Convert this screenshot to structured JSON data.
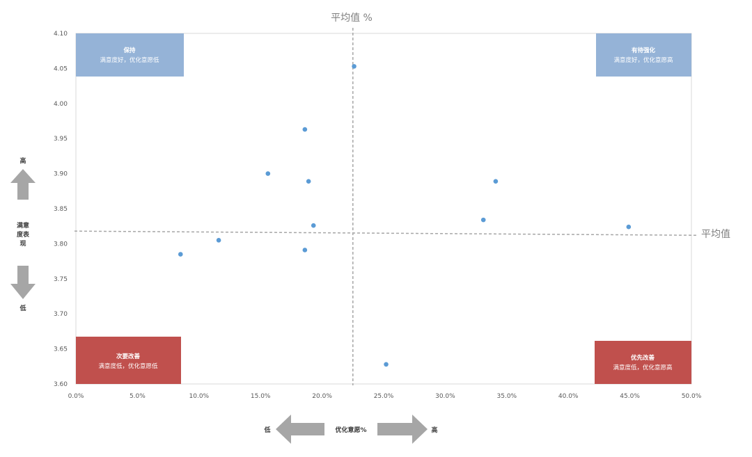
{
  "chart_data": {
    "type": "scatter",
    "title": "",
    "xlabel": "优化意愿%",
    "ylabel": "满意度表现",
    "xlim": [
      0,
      0.5
    ],
    "ylim": [
      3.6,
      4.1
    ],
    "x_ticks": [
      "0.0%",
      "5.0%",
      "10.0%",
      "15.0%",
      "20.0%",
      "25.0%",
      "30.0%",
      "35.0%",
      "40.0%",
      "45.0%",
      "50.0%"
    ],
    "y_ticks": [
      "3.60",
      "3.65",
      "3.70",
      "3.75",
      "3.80",
      "3.85",
      "3.90",
      "3.95",
      "4.00",
      "4.05",
      "4.10"
    ],
    "points": [
      {
        "x": 0.085,
        "y": 3.785
      },
      {
        "x": 0.116,
        "y": 3.805
      },
      {
        "x": 0.156,
        "y": 3.9
      },
      {
        "x": 0.186,
        "y": 3.963
      },
      {
        "x": 0.186,
        "y": 3.791
      },
      {
        "x": 0.189,
        "y": 3.889
      },
      {
        "x": 0.193,
        "y": 3.826
      },
      {
        "x": 0.226,
        "y": 4.053
      },
      {
        "x": 0.252,
        "y": 3.628
      },
      {
        "x": 0.331,
        "y": 3.834
      },
      {
        "x": 0.341,
        "y": 3.889
      },
      {
        "x": 0.449,
        "y": 3.824
      }
    ],
    "ref_x": 0.225,
    "ref_y": 3.818,
    "ref_x_label": "平均值 %",
    "ref_y_label": "平均值",
    "grid": false,
    "point_color": "#5b9bd5",
    "ref_line_color": "#a6a6a6"
  },
  "quadrants": {
    "top_left": {
      "title": "保持",
      "subtitle": "满意度好，优化意愿低",
      "color": "#95b3d7"
    },
    "top_right": {
      "title": "有待强化",
      "subtitle": "满意度好，优化意愿高",
      "color": "#95b3d7"
    },
    "bottom_left": {
      "title": "次要改善",
      "subtitle": "满意度低，优化意愿低",
      "color": "#c0504d"
    },
    "bottom_right": {
      "title": "优先改善",
      "subtitle": "满意度低，优化意愿高",
      "color": "#c0504d"
    }
  },
  "y_indicator": {
    "high": "高",
    "label_lines": [
      "满意",
      "度表",
      "现"
    ],
    "low": "低"
  },
  "x_indicator": {
    "low": "低",
    "label": "优化意愿%",
    "high": "高"
  },
  "arrow_color": "#a6a6a6"
}
